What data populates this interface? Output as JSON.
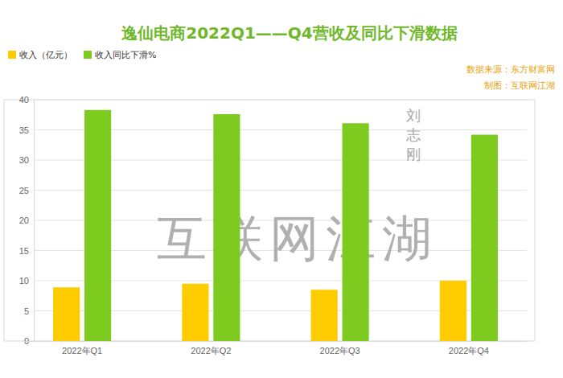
{
  "chart_data": {
    "type": "bar",
    "title": "逸仙电商2022Q1——Q4营收及同比下滑数据",
    "annotations": [
      "数据来源：东方财富网",
      "制图：互联网江湖",
      "互联网江湖",
      "刘志刚"
    ],
    "categories": [
      "2022年Q1",
      "2022年Q2",
      "2022年Q3",
      "2022年Q4"
    ],
    "series": [
      {
        "name": "收入（亿元）",
        "color": "#ffcc00",
        "values": [
          8.9,
          9.5,
          8.5,
          10.0
        ]
      },
      {
        "name": "收入同比下滑%",
        "color": "#7ecb20",
        "values": [
          38.3,
          37.6,
          36.1,
          34.2
        ]
      }
    ],
    "ylim": [
      0,
      40
    ],
    "yticks": [
      0,
      5,
      10,
      15,
      20,
      25,
      30,
      35,
      40
    ],
    "grid": true,
    "legend": "top-left"
  }
}
